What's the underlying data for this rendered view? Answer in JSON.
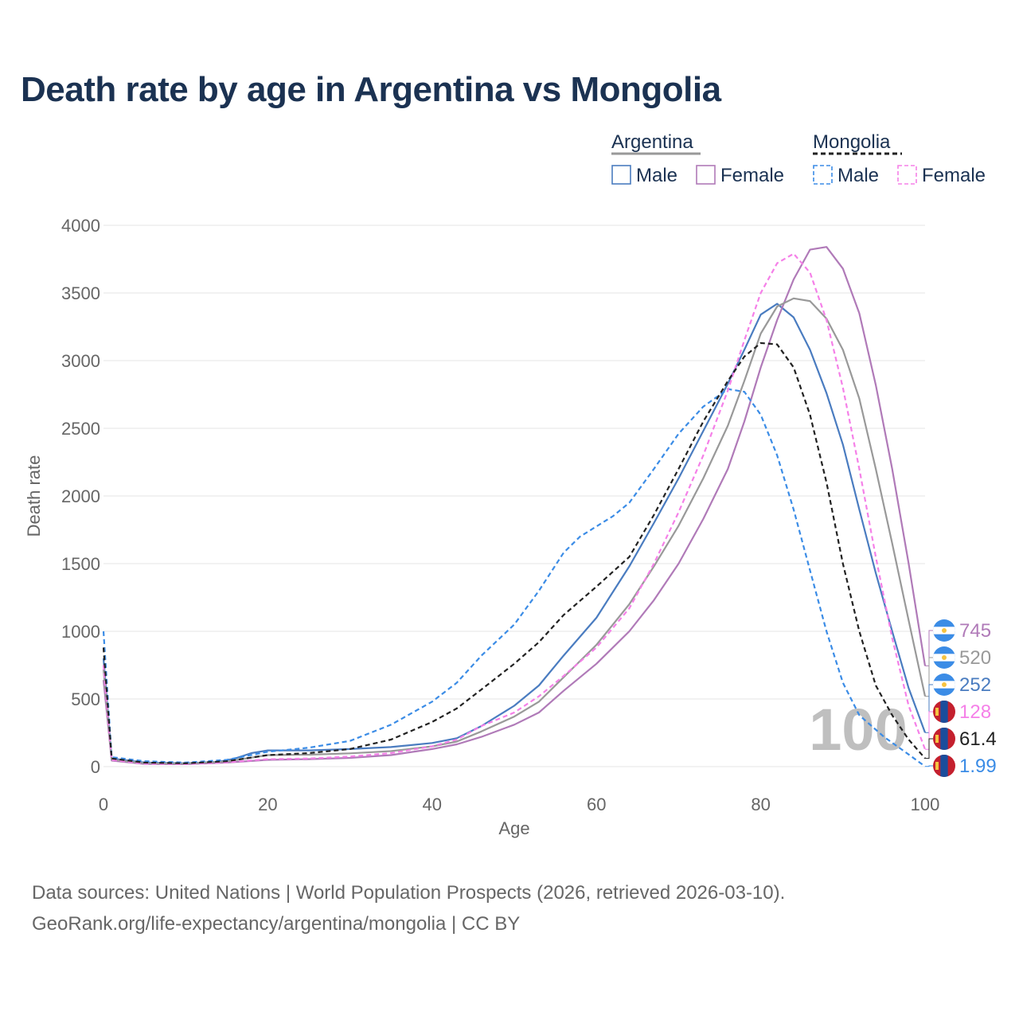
{
  "title": "Death rate by age in Argentina vs Mongolia",
  "footer": {
    "line1": "Data sources: United Nations | World Population Prospects (2026, retrieved 2026-03-10).",
    "line2": "GeoRank.org/life-expectancy/argentina/mongolia | CC BY"
  },
  "legend": {
    "groups": [
      {
        "name": "Argentina",
        "items": [
          {
            "label": "Male",
            "color": "#4a7cc0"
          },
          {
            "label": "Female",
            "color": "#b07ab8"
          }
        ]
      },
      {
        "name": "Mongolia",
        "items": [
          {
            "label": "Male",
            "color": "#3b8ce6"
          },
          {
            "label": "Female",
            "color": "#f580e8"
          }
        ]
      }
    ]
  },
  "watermark": "100",
  "colors": {
    "text_dark": "#1b3252",
    "axis_text": "#666666",
    "grid": "#e6e6e6",
    "flag_ar_blue": "#3b8ce6",
    "flag_ar_sun": "#f6c342",
    "flag_mn_red": "#c4202e",
    "flag_mn_blue": "#1b4d9c"
  },
  "chart_data": {
    "type": "line",
    "xlabel": "Age",
    "ylabel": "Death rate",
    "xlim": [
      0,
      100
    ],
    "ylim": [
      0,
      4000
    ],
    "xticks": [
      0,
      20,
      40,
      60,
      80,
      100
    ],
    "yticks": [
      0,
      500,
      1000,
      1500,
      2000,
      2500,
      3000,
      3500,
      4000
    ],
    "grid": true,
    "legend_position": "top-right",
    "series": [
      {
        "name": "Argentina Male",
        "country": "Argentina",
        "sex": "Male",
        "color": "#4a7cc0",
        "dash": false,
        "end_label": "252",
        "points": [
          [
            0,
            800
          ],
          [
            1,
            60
          ],
          [
            5,
            30
          ],
          [
            10,
            25
          ],
          [
            14,
            35
          ],
          [
            16,
            60
          ],
          [
            18,
            100
          ],
          [
            20,
            120
          ],
          [
            25,
            120
          ],
          [
            30,
            130
          ],
          [
            35,
            145
          ],
          [
            40,
            175
          ],
          [
            43,
            210
          ],
          [
            46,
            300
          ],
          [
            50,
            450
          ],
          [
            53,
            600
          ],
          [
            56,
            820
          ],
          [
            60,
            1100
          ],
          [
            64,
            1480
          ],
          [
            67,
            1800
          ],
          [
            70,
            2130
          ],
          [
            73,
            2480
          ],
          [
            76,
            2830
          ],
          [
            78,
            3080
          ],
          [
            80,
            3340
          ],
          [
            82,
            3420
          ],
          [
            84,
            3320
          ],
          [
            86,
            3080
          ],
          [
            88,
            2760
          ],
          [
            90,
            2380
          ],
          [
            92,
            1900
          ],
          [
            94,
            1430
          ],
          [
            96,
            1000
          ],
          [
            98,
            580
          ],
          [
            100,
            252
          ]
        ]
      },
      {
        "name": "Argentina Female",
        "country": "Argentina",
        "sex": "Female",
        "color": "#b07ab8",
        "dash": false,
        "end_label": "745",
        "points": [
          [
            0,
            640
          ],
          [
            1,
            45
          ],
          [
            5,
            20
          ],
          [
            10,
            18
          ],
          [
            15,
            30
          ],
          [
            20,
            50
          ],
          [
            25,
            55
          ],
          [
            30,
            65
          ],
          [
            35,
            85
          ],
          [
            40,
            130
          ],
          [
            43,
            165
          ],
          [
            46,
            220
          ],
          [
            50,
            310
          ],
          [
            53,
            400
          ],
          [
            56,
            560
          ],
          [
            60,
            760
          ],
          [
            64,
            1000
          ],
          [
            67,
            1230
          ],
          [
            70,
            1500
          ],
          [
            73,
            1830
          ],
          [
            76,
            2200
          ],
          [
            78,
            2550
          ],
          [
            80,
            2950
          ],
          [
            82,
            3300
          ],
          [
            84,
            3600
          ],
          [
            86,
            3820
          ],
          [
            88,
            3840
          ],
          [
            90,
            3680
          ],
          [
            92,
            3350
          ],
          [
            94,
            2820
          ],
          [
            96,
            2200
          ],
          [
            98,
            1500
          ],
          [
            100,
            745
          ]
        ]
      },
      {
        "name": "Argentina Total",
        "country": "Argentina",
        "sex": "Total",
        "color": "#999999",
        "dash": false,
        "end_label": "520",
        "points": [
          [
            0,
            720
          ],
          [
            1,
            52
          ],
          [
            5,
            25
          ],
          [
            10,
            22
          ],
          [
            15,
            38
          ],
          [
            20,
            85
          ],
          [
            25,
            88
          ],
          [
            30,
            98
          ],
          [
            35,
            115
          ],
          [
            40,
            150
          ],
          [
            43,
            185
          ],
          [
            46,
            260
          ],
          [
            50,
            370
          ],
          [
            53,
            480
          ],
          [
            56,
            660
          ],
          [
            60,
            900
          ],
          [
            64,
            1200
          ],
          [
            67,
            1480
          ],
          [
            70,
            1780
          ],
          [
            73,
            2130
          ],
          [
            76,
            2520
          ],
          [
            78,
            2850
          ],
          [
            80,
            3200
          ],
          [
            82,
            3400
          ],
          [
            84,
            3460
          ],
          [
            86,
            3440
          ],
          [
            88,
            3310
          ],
          [
            90,
            3080
          ],
          [
            92,
            2720
          ],
          [
            94,
            2200
          ],
          [
            96,
            1650
          ],
          [
            98,
            1080
          ],
          [
            100,
            520
          ]
        ]
      },
      {
        "name": "Mongolia Male",
        "country": "Mongolia",
        "sex": "Male",
        "color": "#3b8ce6",
        "dash": true,
        "end_label": "1.99",
        "points": [
          [
            0,
            1000
          ],
          [
            1,
            70
          ],
          [
            5,
            40
          ],
          [
            10,
            30
          ],
          [
            15,
            50
          ],
          [
            20,
            110
          ],
          [
            25,
            140
          ],
          [
            30,
            190
          ],
          [
            35,
            310
          ],
          [
            40,
            480
          ],
          [
            43,
            620
          ],
          [
            46,
            820
          ],
          [
            50,
            1050
          ],
          [
            53,
            1300
          ],
          [
            56,
            1580
          ],
          [
            58,
            1700
          ],
          [
            62,
            1850
          ],
          [
            64,
            1950
          ],
          [
            67,
            2200
          ],
          [
            70,
            2460
          ],
          [
            73,
            2660
          ],
          [
            76,
            2790
          ],
          [
            78,
            2770
          ],
          [
            80,
            2600
          ],
          [
            82,
            2300
          ],
          [
            84,
            1900
          ],
          [
            86,
            1450
          ],
          [
            88,
            1000
          ],
          [
            90,
            620
          ],
          [
            92,
            380
          ],
          [
            95,
            220
          ],
          [
            98,
            90
          ],
          [
            100,
            2
          ]
        ]
      },
      {
        "name": "Mongolia Female",
        "country": "Mongolia",
        "sex": "Female",
        "color": "#f580e8",
        "dash": true,
        "end_label": "128",
        "points": [
          [
            0,
            750
          ],
          [
            1,
            50
          ],
          [
            5,
            22
          ],
          [
            10,
            18
          ],
          [
            15,
            32
          ],
          [
            20,
            55
          ],
          [
            25,
            60
          ],
          [
            30,
            75
          ],
          [
            35,
            100
          ],
          [
            40,
            150
          ],
          [
            43,
            200
          ],
          [
            46,
            300
          ],
          [
            50,
            400
          ],
          [
            53,
            520
          ],
          [
            56,
            670
          ],
          [
            60,
            880
          ],
          [
            64,
            1170
          ],
          [
            67,
            1500
          ],
          [
            70,
            1880
          ],
          [
            73,
            2300
          ],
          [
            76,
            2780
          ],
          [
            78,
            3150
          ],
          [
            80,
            3500
          ],
          [
            82,
            3720
          ],
          [
            84,
            3790
          ],
          [
            86,
            3650
          ],
          [
            88,
            3300
          ],
          [
            90,
            2800
          ],
          [
            92,
            2200
          ],
          [
            94,
            1550
          ],
          [
            96,
            950
          ],
          [
            98,
            450
          ],
          [
            100,
            128
          ]
        ]
      },
      {
        "name": "Mongolia Total",
        "country": "Mongolia",
        "sex": "Total",
        "color": "#222222",
        "dash": true,
        "end_label": "61.4",
        "points": [
          [
            0,
            880
          ],
          [
            1,
            60
          ],
          [
            5,
            30
          ],
          [
            10,
            25
          ],
          [
            15,
            40
          ],
          [
            20,
            85
          ],
          [
            25,
            100
          ],
          [
            30,
            130
          ],
          [
            35,
            200
          ],
          [
            40,
            330
          ],
          [
            43,
            430
          ],
          [
            46,
            570
          ],
          [
            50,
            760
          ],
          [
            53,
            920
          ],
          [
            56,
            1120
          ],
          [
            60,
            1330
          ],
          [
            64,
            1550
          ],
          [
            67,
            1860
          ],
          [
            70,
            2200
          ],
          [
            73,
            2550
          ],
          [
            76,
            2850
          ],
          [
            78,
            3030
          ],
          [
            80,
            3130
          ],
          [
            82,
            3120
          ],
          [
            84,
            2950
          ],
          [
            86,
            2600
          ],
          [
            88,
            2100
          ],
          [
            90,
            1500
          ],
          [
            92,
            1000
          ],
          [
            94,
            600
          ],
          [
            96,
            380
          ],
          [
            98,
            200
          ],
          [
            100,
            61.4
          ]
        ]
      }
    ]
  }
}
